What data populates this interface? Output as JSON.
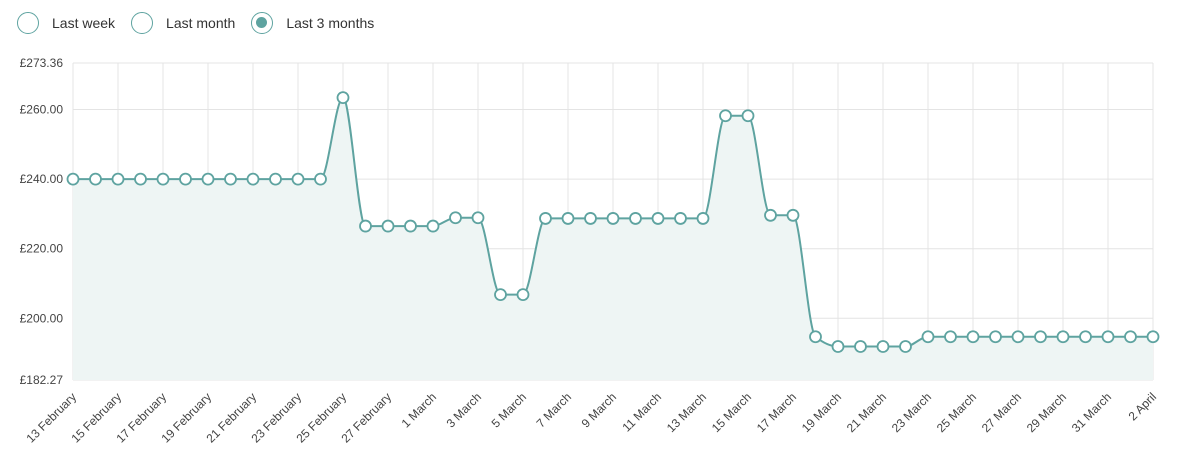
{
  "period_options": [
    {
      "label": "Last week",
      "selected": false
    },
    {
      "label": "Last month",
      "selected": false
    },
    {
      "label": "Last 3 months",
      "selected": true
    }
  ],
  "colors": {
    "accent": "#5ea3a0",
    "fill": "#eef5f4",
    "grid": "#e4e4e4",
    "tick_text": "#444444"
  },
  "chart_data": {
    "type": "line",
    "title": "",
    "xlabel": "",
    "ylabel": "",
    "ylim": [
      182.27,
      273.36
    ],
    "y_ticks": [
      "£273.36",
      "£260.00",
      "£240.00",
      "£220.00",
      "£200.00",
      "£182.27"
    ],
    "y_tick_values": [
      273.36,
      260,
      240,
      220,
      200,
      182.27
    ],
    "x_tick_labels": [
      "13 February",
      "15 February",
      "17 February",
      "19 February",
      "21 February",
      "23 February",
      "25 February",
      "27 February",
      "1 March",
      "3 March",
      "5 March",
      "7 March",
      "9 March",
      "11 March",
      "13 March",
      "15 March",
      "17 March",
      "19 March",
      "21 March",
      "23 March",
      "25 March",
      "27 March",
      "29 March",
      "31 March",
      "2 April"
    ],
    "x_start": "2024-02-13",
    "grid": true,
    "area_fill": true,
    "smooth": true,
    "series": [
      {
        "values": [
          240,
          240,
          240,
          240,
          240,
          240,
          240,
          240,
          240,
          240,
          240,
          240,
          263.4,
          226.5,
          226.5,
          226.5,
          226.5,
          228.9,
          228.9,
          206.8,
          206.8,
          228.7,
          228.7,
          228.7,
          228.7,
          228.7,
          228.7,
          228.7,
          228.7,
          258.2,
          258.2,
          229.6,
          229.6,
          194.7,
          191.9,
          191.9,
          191.9,
          191.9,
          194.7,
          194.7,
          194.7,
          194.7,
          194.7,
          194.7,
          194.7,
          194.7,
          194.7,
          194.7,
          194.7
        ]
      }
    ]
  }
}
